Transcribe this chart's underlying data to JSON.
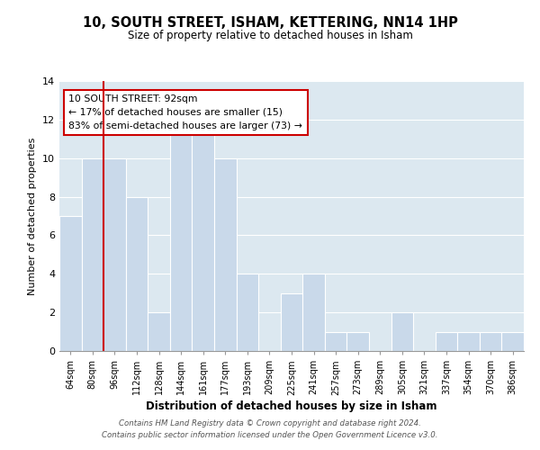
{
  "title": "10, SOUTH STREET, ISHAM, KETTERING, NN14 1HP",
  "subtitle": "Size of property relative to detached houses in Isham",
  "xlabel": "Distribution of detached houses by size in Isham",
  "ylabel": "Number of detached properties",
  "categories": [
    "64sqm",
    "80sqm",
    "96sqm",
    "112sqm",
    "128sqm",
    "144sqm",
    "161sqm",
    "177sqm",
    "193sqm",
    "209sqm",
    "225sqm",
    "241sqm",
    "257sqm",
    "273sqm",
    "289sqm",
    "305sqm",
    "321sqm",
    "337sqm",
    "354sqm",
    "370sqm",
    "386sqm"
  ],
  "values": [
    7,
    10,
    10,
    8,
    2,
    12,
    12,
    10,
    4,
    0,
    3,
    4,
    1,
    1,
    0,
    2,
    0,
    1,
    1,
    1,
    1
  ],
  "bar_color": "#c9d9ea",
  "highlight_color": "#cc0000",
  "highlight_index": 2,
  "annotation_title": "10 SOUTH STREET: 92sqm",
  "annotation_line1": "← 17% of detached houses are smaller (15)",
  "annotation_line2": "83% of semi-detached houses are larger (73) →",
  "ylim": [
    0,
    14
  ],
  "yticks": [
    0,
    2,
    4,
    6,
    8,
    10,
    12,
    14
  ],
  "footer_line1": "Contains HM Land Registry data © Crown copyright and database right 2024.",
  "footer_line2": "Contains public sector information licensed under the Open Government Licence v3.0.",
  "grid_color": "#ffffff",
  "bg_color": "#dce8f0"
}
